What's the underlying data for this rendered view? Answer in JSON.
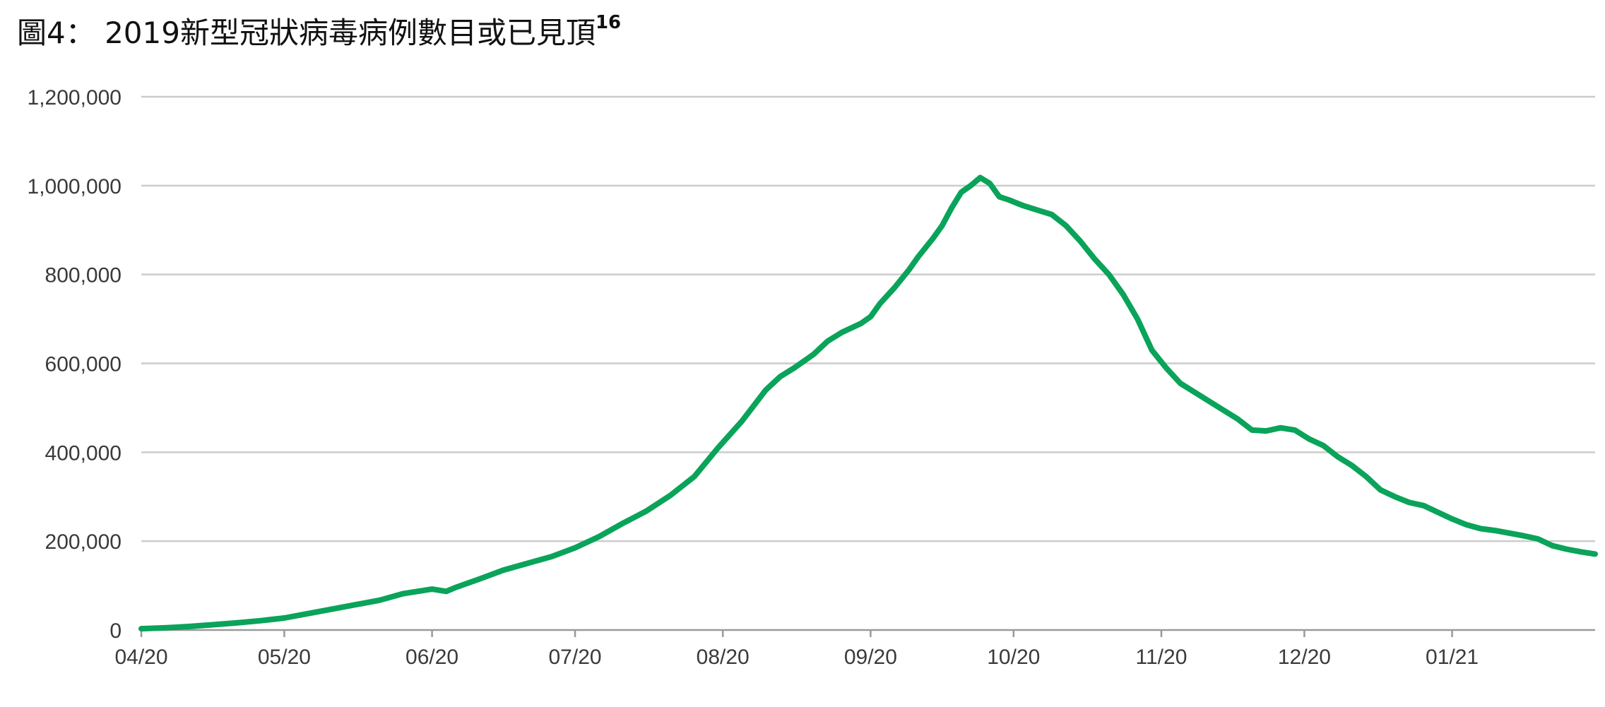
{
  "title": {
    "main": "圖4： 2019新型冠狀病毒病例數目或已見頂",
    "superscript": "16"
  },
  "colors": {
    "line": "#0aa35a",
    "grid": "#cccccc",
    "axis": "#999999",
    "text": "#3a3a3a"
  },
  "chart_data": {
    "type": "line",
    "title": "圖4： 2019新型冠狀病毒病例數目或已見頂16",
    "xlabel": "",
    "ylabel": "",
    "ylim": [
      0,
      1200000
    ],
    "xlim": [
      "2020-04-01",
      "2021-01-31"
    ],
    "grid": true,
    "legend": "none",
    "x_ticks": [
      {
        "date": "2020-04-01",
        "label": "04/20"
      },
      {
        "date": "2020-05-01",
        "label": "05/20"
      },
      {
        "date": "2020-06-01",
        "label": "06/20"
      },
      {
        "date": "2020-07-01",
        "label": "07/20"
      },
      {
        "date": "2020-08-01",
        "label": "08/20"
      },
      {
        "date": "2020-09-01",
        "label": "09/20"
      },
      {
        "date": "2020-10-01",
        "label": "10/20"
      },
      {
        "date": "2020-11-01",
        "label": "11/20"
      },
      {
        "date": "2020-12-01",
        "label": "12/20"
      },
      {
        "date": "2021-01-01",
        "label": "01/21"
      }
    ],
    "y_ticks": [
      {
        "value": 0,
        "label": "0"
      },
      {
        "value": 200000,
        "label": "200,000"
      },
      {
        "value": 400000,
        "label": "400,000"
      },
      {
        "value": 600000,
        "label": "600,000"
      },
      {
        "value": 800000,
        "label": "800,000"
      },
      {
        "value": 1000000,
        "label": "1,000,000"
      },
      {
        "value": 1200000,
        "label": "1,200,000"
      }
    ],
    "series": [
      {
        "x": [
          "2020-04-01",
          "2020-04-06",
          "2020-04-11",
          "2020-04-16",
          "2020-04-21",
          "2020-04-26",
          "2020-05-01",
          "2020-05-06",
          "2020-05-11",
          "2020-05-16",
          "2020-05-21",
          "2020-05-26",
          "2020-06-01",
          "2020-06-04",
          "2020-06-06",
          "2020-06-11",
          "2020-06-16",
          "2020-06-21",
          "2020-06-26",
          "2020-07-01",
          "2020-07-06",
          "2020-07-11",
          "2020-07-16",
          "2020-07-21",
          "2020-07-26",
          "2020-07-31",
          "2020-08-05",
          "2020-08-10",
          "2020-08-13",
          "2020-08-16",
          "2020-08-20",
          "2020-08-23",
          "2020-08-26",
          "2020-08-30",
          "2020-09-01",
          "2020-09-03",
          "2020-09-06",
          "2020-09-09",
          "2020-09-11",
          "2020-09-14",
          "2020-09-16",
          "2020-09-18",
          "2020-09-20",
          "2020-09-22",
          "2020-09-24",
          "2020-09-26",
          "2020-09-28",
          "2020-09-30",
          "2020-10-03",
          "2020-10-06",
          "2020-10-09",
          "2020-10-12",
          "2020-10-15",
          "2020-10-18",
          "2020-10-21",
          "2020-10-24",
          "2020-10-27",
          "2020-10-30",
          "2020-11-02",
          "2020-11-05",
          "2020-11-08",
          "2020-11-11",
          "2020-11-14",
          "2020-11-17",
          "2020-11-20",
          "2020-11-23",
          "2020-11-26",
          "2020-11-29",
          "2020-12-02",
          "2020-12-05",
          "2020-12-08",
          "2020-12-11",
          "2020-12-14",
          "2020-12-17",
          "2020-12-20",
          "2020-12-23",
          "2020-12-26",
          "2020-12-29",
          "2021-01-01",
          "2021-01-04",
          "2021-01-07",
          "2021-01-10",
          "2021-01-13",
          "2021-01-16",
          "2021-01-19",
          "2021-01-22",
          "2021-01-25",
          "2021-01-28",
          "2021-01-31"
        ],
        "y": [
          3000,
          5000,
          8000,
          12000,
          16000,
          21000,
          27000,
          37000,
          47000,
          57000,
          67000,
          82000,
          92000,
          87000,
          96000,
          115000,
          135000,
          150000,
          165000,
          185000,
          210000,
          240000,
          268000,
          303000,
          345000,
          410000,
          470000,
          540000,
          570000,
          590000,
          620000,
          650000,
          670000,
          690000,
          705000,
          735000,
          770000,
          810000,
          840000,
          880000,
          910000,
          950000,
          985000,
          1000000,
          1018000,
          1005000,
          975000,
          968000,
          955000,
          945000,
          935000,
          910000,
          875000,
          835000,
          800000,
          755000,
          700000,
          630000,
          590000,
          555000,
          535000,
          515000,
          495000,
          475000,
          450000,
          448000,
          455000,
          450000,
          430000,
          415000,
          390000,
          370000,
          345000,
          315000,
          300000,
          287000,
          280000,
          265000,
          250000,
          237000,
          228000,
          224000,
          218000,
          212000,
          205000,
          190000,
          182000,
          176000,
          171000
        ]
      }
    ]
  }
}
